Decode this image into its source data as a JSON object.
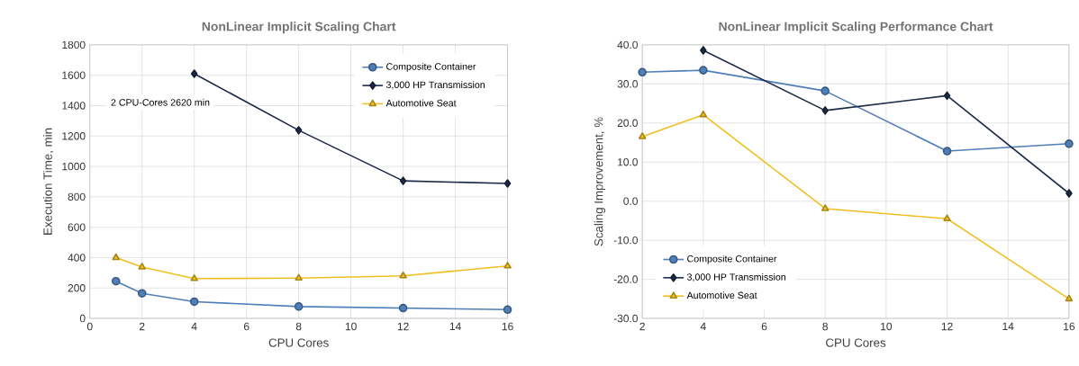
{
  "chart_data": [
    {
      "type": "line",
      "title": "NonLinear Implicit Scaling Chart",
      "xlabel": "CPU Cores",
      "ylabel": "Execution Time, min",
      "x": [
        1,
        2,
        4,
        8,
        12,
        16
      ],
      "series": [
        {
          "name": "Composite Container",
          "color": "#4f7fb8",
          "marker": "circle",
          "values": [
            245,
            165,
            110,
            78,
            68,
            58
          ]
        },
        {
          "name": "3,000 HP Transmission",
          "color": "#1c2a48",
          "marker": "diamond",
          "values": [
            null,
            null,
            1610,
            1238,
            905,
            888
          ]
        },
        {
          "name": "Automotive Seat",
          "color": "#f0c020",
          "marker": "triangle",
          "values": [
            400,
            338,
            262,
            265,
            280,
            345
          ]
        }
      ],
      "xlim": [
        0,
        16
      ],
      "xticks": [
        0,
        2,
        4,
        6,
        8,
        10,
        12,
        14,
        16
      ],
      "ylim": [
        0,
        1800
      ],
      "yticks": [
        0,
        200,
        400,
        600,
        800,
        1000,
        1200,
        1400,
        1600,
        1800
      ],
      "grid": true,
      "legend": "top right",
      "line_style": "solid",
      "annotations": [
        "2 CPU-Cores 2620 min"
      ]
    },
    {
      "type": "line",
      "title": "NonLinear Implicit Scaling Performance Chart",
      "xlabel": "CPU Cores",
      "ylabel": "Scaling Improvement, %",
      "x": [
        2,
        4,
        8,
        12,
        16
      ],
      "series": [
        {
          "name": "Composite Container",
          "color": "#4f7fb8",
          "marker": "circle",
          "values": [
            33.0,
            33.5,
            28.2,
            12.8,
            14.7
          ]
        },
        {
          "name": "3,000 HP Transmission",
          "color": "#1c2a48",
          "marker": "diamond",
          "values": [
            null,
            38.6,
            23.2,
            27.0,
            2.0
          ]
        },
        {
          "name": "Automotive Seat",
          "color": "#f0c020",
          "marker": "triangle",
          "values": [
            16.5,
            22.1,
            -1.9,
            -4.5,
            -25.0
          ]
        }
      ],
      "xlim": [
        2,
        16
      ],
      "xticks": [
        2,
        4,
        6,
        8,
        10,
        12,
        14,
        16
      ],
      "ylim": [
        -30,
        40
      ],
      "yticks": [
        {
          "value": -30,
          "label": "-30.0"
        },
        {
          "value": -20,
          "label": "-20.0"
        },
        {
          "value": -10,
          "label": "-10.0"
        },
        {
          "value": 0,
          "label": "0.0"
        },
        {
          "value": 10,
          "label": "10.0"
        },
        {
          "value": 20,
          "label": "20.0"
        },
        {
          "value": 30,
          "label": "30.0"
        },
        {
          "value": 40,
          "label": "40.0"
        }
      ],
      "grid": true,
      "legend": "bottom left",
      "line_style": "solid"
    }
  ]
}
